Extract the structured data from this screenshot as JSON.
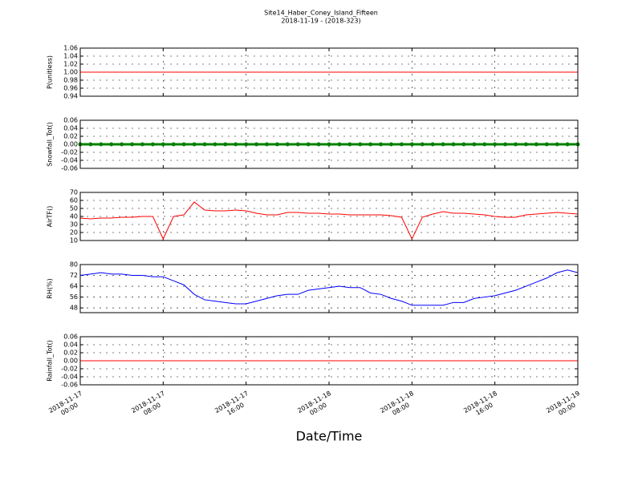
{
  "title": "Site14_Haber_Coney_Island_Fifteen",
  "subtitle": "2018-11-19 - (2018-323)",
  "xlabel": "Date/Time",
  "xlim": [
    "2018-11-17 00:00",
    "2018-11-19 00:00"
  ],
  "xticks": [
    {
      "value": "2018-11-17 00:00",
      "label": "2018-11-17\n00:00"
    },
    {
      "value": "2018-11-17 08:00",
      "label": "2018-11-17\n08:00"
    },
    {
      "value": "2018-11-17 16:00",
      "label": "2018-11-17\n16:00"
    },
    {
      "value": "2018-11-18 00:00",
      "label": "2018-11-18\n00:00"
    },
    {
      "value": "2018-11-18 08:00",
      "label": "2018-11-18\n08:00"
    },
    {
      "value": "2018-11-18 16:00",
      "label": "2018-11-18\n16:00"
    },
    {
      "value": "2018-11-19 00:00",
      "label": "2018-11-19\n00:00"
    }
  ],
  "x": [
    "2018-11-17 00:00",
    "2018-11-17 01:00",
    "2018-11-17 02:00",
    "2018-11-17 03:00",
    "2018-11-17 04:00",
    "2018-11-17 05:00",
    "2018-11-17 06:00",
    "2018-11-17 07:00",
    "2018-11-17 08:00",
    "2018-11-17 09:00",
    "2018-11-17 10:00",
    "2018-11-17 11:00",
    "2018-11-17 12:00",
    "2018-11-17 13:00",
    "2018-11-17 14:00",
    "2018-11-17 15:00",
    "2018-11-17 16:00",
    "2018-11-17 17:00",
    "2018-11-17 18:00",
    "2018-11-17 19:00",
    "2018-11-17 20:00",
    "2018-11-17 21:00",
    "2018-11-17 22:00",
    "2018-11-17 23:00",
    "2018-11-18 00:00",
    "2018-11-18 01:00",
    "2018-11-18 02:00",
    "2018-11-18 03:00",
    "2018-11-18 04:00",
    "2018-11-18 05:00",
    "2018-11-18 06:00",
    "2018-11-18 07:00",
    "2018-11-18 08:00",
    "2018-11-18 09:00",
    "2018-11-18 10:00",
    "2018-11-18 11:00",
    "2018-11-18 12:00",
    "2018-11-18 13:00",
    "2018-11-18 14:00",
    "2018-11-18 15:00",
    "2018-11-18 16:00",
    "2018-11-18 17:00",
    "2018-11-18 18:00",
    "2018-11-18 19:00",
    "2018-11-18 20:00",
    "2018-11-18 21:00",
    "2018-11-18 22:00",
    "2018-11-18 23:00",
    "2018-11-19 00:00"
  ],
  "chart_data": [
    {
      "type": "line",
      "ylabel": "P(unitless)",
      "color": "#ff0000",
      "grid": true,
      "ylim": [
        0.94,
        1.06
      ],
      "yticks": [
        0.94,
        0.96,
        0.98,
        {
          "value": 1,
          "label": "1.00"
        },
        1.02,
        1.04,
        1.06
      ],
      "values": [
        1,
        1,
        1,
        1,
        1,
        1,
        1,
        1,
        1,
        1,
        1,
        1,
        1,
        1,
        1,
        1,
        1,
        1,
        1,
        1,
        1,
        1,
        1,
        1,
        1,
        1,
        1,
        1,
        1,
        1,
        1,
        1,
        1,
        1,
        1,
        1,
        1,
        1,
        1,
        1,
        1,
        1,
        1,
        1,
        1,
        1,
        1,
        1,
        1
      ]
    },
    {
      "type": "line",
      "ylabel": "Snowfall_Tot()",
      "color": "#008000",
      "marker": true,
      "grid": true,
      "ylim": [
        -0.06,
        0.06
      ],
      "yticks": [
        -0.06,
        -0.04,
        -0.02,
        {
          "value": 0,
          "label": "0.00"
        },
        0.02,
        0.04,
        0.06
      ],
      "values": [
        0,
        0,
        0,
        0,
        0,
        0,
        0,
        0,
        0,
        0,
        0,
        0,
        0,
        0,
        0,
        0,
        0,
        0,
        0,
        0,
        0,
        0,
        0,
        0,
        0,
        0,
        0,
        0,
        0,
        0,
        0,
        0,
        0,
        0,
        0,
        0,
        0,
        0,
        0,
        0,
        0,
        0,
        0,
        0,
        0,
        0,
        0,
        0,
        0
      ]
    },
    {
      "type": "line",
      "ylabel": "AirTF()",
      "color": "#ff0000",
      "grid": true,
      "ylim": [
        10,
        70
      ],
      "yticks": [
        10,
        20,
        30,
        40,
        50,
        60,
        70
      ],
      "values": [
        38,
        37,
        38,
        38,
        39,
        39,
        40,
        40,
        12,
        40,
        42,
        58,
        48,
        47,
        47,
        48,
        47,
        44,
        42,
        42,
        45,
        45,
        44,
        44,
        43,
        43,
        42,
        42,
        42,
        42,
        41,
        39,
        12,
        39,
        43,
        46,
        44,
        44,
        43,
        42,
        40,
        39,
        39,
        42,
        43,
        44,
        45,
        44,
        43
      ]
    },
    {
      "type": "line",
      "ylabel": "RH(%)",
      "color": "#0000ff",
      "grid": true,
      "ylim": [
        44.5,
        80
      ],
      "yticks": [
        48,
        56,
        64,
        72,
        80
      ],
      "values": [
        72,
        73,
        74,
        73,
        73,
        72,
        72,
        71,
        71,
        68,
        65,
        58,
        54,
        53,
        52,
        51,
        51,
        53,
        55,
        57,
        58,
        58,
        61,
        62,
        63,
        64,
        63,
        63,
        59,
        58,
        55,
        53,
        50,
        50,
        50,
        50,
        52,
        52,
        55,
        56,
        57,
        59,
        61,
        64,
        67,
        70,
        74,
        76,
        74
      ]
    },
    {
      "type": "line",
      "ylabel": "Rainfall_Tot()",
      "color": "#ff0000",
      "grid": true,
      "ylim": [
        -0.06,
        0.06
      ],
      "yticks": [
        -0.06,
        -0.04,
        -0.02,
        {
          "value": 0,
          "label": "0.00"
        },
        0.02,
        0.04,
        0.06
      ],
      "values": [
        0,
        0,
        0,
        0,
        0,
        0,
        0,
        0,
        0,
        0,
        0,
        0,
        0,
        0,
        0,
        0,
        0,
        0,
        0,
        0,
        0,
        0,
        0,
        0,
        0,
        0,
        0,
        0,
        0,
        0,
        0,
        0,
        0,
        0,
        0,
        0,
        0,
        0,
        0,
        0,
        0,
        0,
        0,
        0,
        0,
        0,
        0,
        0,
        0
      ]
    }
  ]
}
